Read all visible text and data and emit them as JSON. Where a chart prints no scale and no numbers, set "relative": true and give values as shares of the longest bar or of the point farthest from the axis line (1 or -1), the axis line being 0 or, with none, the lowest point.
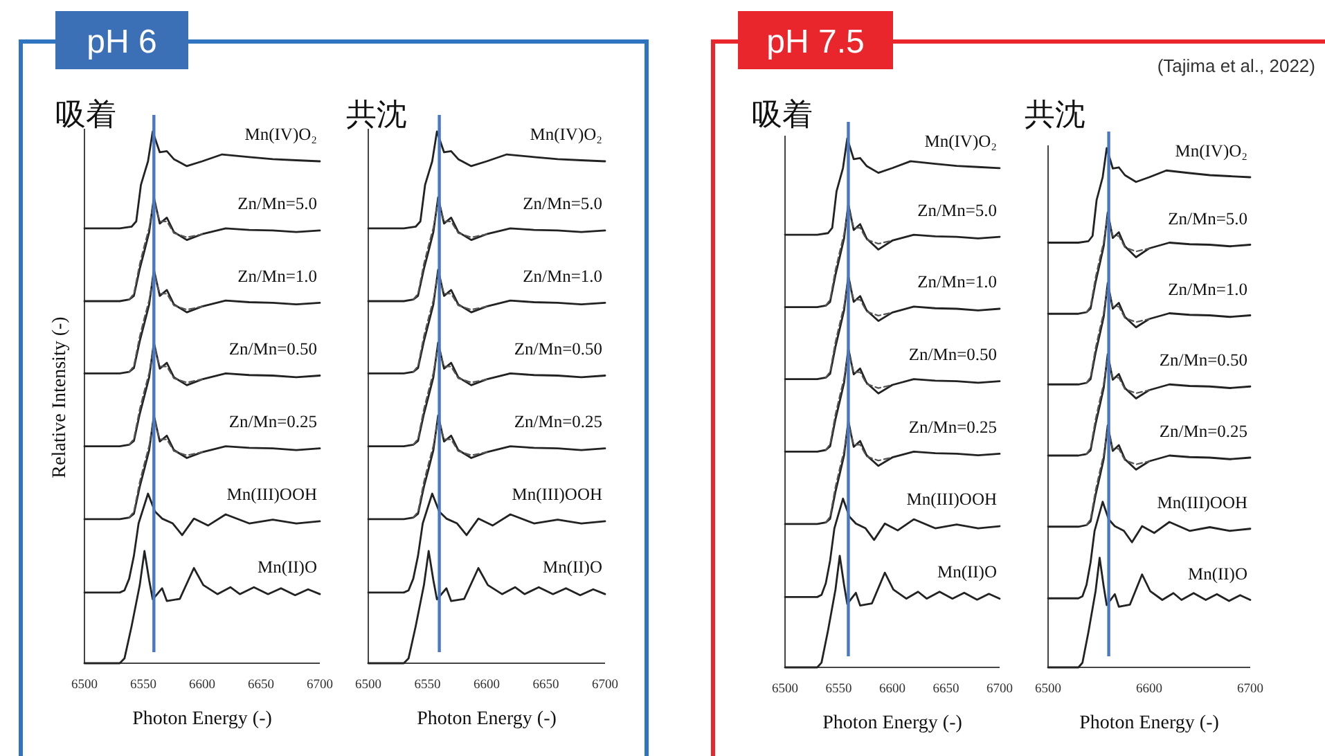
{
  "chart_data": [
    {
      "type": "line",
      "title": "吸着",
      "subtitle": "pH 6",
      "xlabel": "Photon Energy (-)",
      "ylabel": "Relative Intensity (-)",
      "relative": true,
      "xlim": [
        6500,
        6700
      ],
      "xticks": [
        6500,
        6550,
        6600,
        6650,
        6700
      ],
      "ref_lines": [
        {
          "axis": "x",
          "value": 6559,
          "color": "#4a78c2"
        }
      ],
      "series": [
        {
          "name": "Mn(IV)O₂",
          "color": "#222222",
          "x": [
            6500,
            6530,
            6540,
            6544,
            6548,
            6551,
            6554,
            6558,
            6564,
            6570,
            6576,
            6587,
            6600,
            6617,
            6640,
            6660,
            6680,
            6700
          ],
          "values": [
            0.818,
            0.818,
            0.821,
            0.831,
            0.9,
            0.922,
            0.944,
            1.0,
            0.961,
            0.963,
            0.948,
            0.935,
            0.944,
            0.957,
            0.952,
            0.948,
            0.946,
            0.944
          ]
        },
        {
          "name": "Zn/Mn=5.0",
          "color": "#222222",
          "x": [
            6500,
            6530,
            6538,
            6542,
            6547,
            6551,
            6555,
            6559,
            6564,
            6570,
            6576,
            6587,
            6600,
            6620,
            6640,
            6660,
            6680,
            6700
          ],
          "values": [
            0.681,
            0.681,
            0.684,
            0.691,
            0.742,
            0.776,
            0.811,
            0.876,
            0.827,
            0.838,
            0.811,
            0.796,
            0.807,
            0.818,
            0.815,
            0.814,
            0.811,
            0.814
          ]
        },
        {
          "color": "#555555",
          "line_style": "dashed",
          "x": [
            6538,
            6542,
            6547,
            6551,
            6555,
            6559,
            6564,
            6570,
            6576,
            6587,
            6600
          ],
          "values": [
            0.684,
            0.695,
            0.751,
            0.786,
            0.819,
            0.871,
            0.831,
            0.831,
            0.809,
            0.801,
            0.807
          ]
        },
        {
          "name": "Zn/Mn=1.0",
          "color": "#222222",
          "x": [
            6500,
            6530,
            6538,
            6542,
            6547,
            6551,
            6555,
            6559,
            6564,
            6570,
            6576,
            6587,
            6600,
            6620,
            6640,
            6660,
            6680,
            6700
          ],
          "values": [
            0.545,
            0.545,
            0.548,
            0.555,
            0.606,
            0.64,
            0.675,
            0.74,
            0.691,
            0.702,
            0.675,
            0.66,
            0.671,
            0.682,
            0.679,
            0.678,
            0.675,
            0.678
          ]
        },
        {
          "color": "#555555",
          "line_style": "dashed",
          "x": [
            6538,
            6542,
            6547,
            6551,
            6555,
            6559,
            6564,
            6570,
            6576,
            6587,
            6600
          ],
          "values": [
            0.548,
            0.559,
            0.615,
            0.65,
            0.683,
            0.735,
            0.695,
            0.695,
            0.673,
            0.665,
            0.671
          ]
        },
        {
          "name": "Zn/Mn=0.50",
          "color": "#222222",
          "x": [
            6500,
            6530,
            6538,
            6542,
            6547,
            6551,
            6555,
            6559,
            6564,
            6570,
            6576,
            6587,
            6600,
            6620,
            6640,
            6660,
            6680,
            6700
          ],
          "values": [
            0.408,
            0.408,
            0.411,
            0.418,
            0.469,
            0.503,
            0.538,
            0.603,
            0.554,
            0.565,
            0.538,
            0.523,
            0.534,
            0.545,
            0.542,
            0.541,
            0.538,
            0.541
          ]
        },
        {
          "color": "#555555",
          "line_style": "dashed",
          "x": [
            6538,
            6542,
            6547,
            6551,
            6555,
            6559,
            6564,
            6570,
            6576,
            6587,
            6600
          ],
          "values": [
            0.411,
            0.422,
            0.478,
            0.513,
            0.546,
            0.598,
            0.558,
            0.558,
            0.536,
            0.528,
            0.534
          ]
        },
        {
          "name": "Zn/Mn=0.25",
          "color": "#222222",
          "x": [
            6500,
            6530,
            6538,
            6542,
            6547,
            6551,
            6555,
            6559,
            6564,
            6570,
            6576,
            6587,
            6600,
            6620,
            6640,
            6660,
            6680,
            6700
          ],
          "values": [
            0.271,
            0.271,
            0.274,
            0.281,
            0.332,
            0.366,
            0.401,
            0.466,
            0.417,
            0.428,
            0.401,
            0.386,
            0.397,
            0.408,
            0.405,
            0.404,
            0.401,
            0.404
          ]
        },
        {
          "color": "#555555",
          "line_style": "dashed",
          "x": [
            6538,
            6542,
            6547,
            6551,
            6555,
            6559,
            6564,
            6570,
            6576,
            6587,
            6600
          ],
          "values": [
            0.274,
            0.285,
            0.341,
            0.376,
            0.409,
            0.461,
            0.421,
            0.421,
            0.399,
            0.391,
            0.397
          ]
        },
        {
          "name": "Mn(III)OOH",
          "color": "#222222",
          "x": [
            6500,
            6530,
            6534,
            6538,
            6542,
            6546,
            6554,
            6560,
            6566,
            6575,
            6583,
            6593,
            6605,
            6620,
            6640,
            6660,
            6680,
            6700
          ],
          "values": [
            0.133,
            0.133,
            0.137,
            0.159,
            0.202,
            0.263,
            0.319,
            0.285,
            0.272,
            0.263,
            0.241,
            0.272,
            0.259,
            0.28,
            0.263,
            0.27,
            0.263,
            0.267
          ]
        },
        {
          "name": "Mn(II)O",
          "color": "#222222",
          "x": [
            6500,
            6530,
            6534,
            6540,
            6547,
            6551,
            6555,
            6558,
            6566,
            6570,
            6581,
            6593,
            6601,
            6613,
            6624,
            6632,
            6644,
            6656,
            6667,
            6679,
            6690,
            6700
          ],
          "values": [
            0,
            0,
            0.009,
            0.069,
            0.147,
            0.211,
            0.156,
            0.12,
            0.141,
            0.117,
            0.121,
            0.179,
            0.147,
            0.13,
            0.143,
            0.13,
            0.143,
            0.13,
            0.141,
            0.128,
            0.139,
            0.13
          ]
        }
      ]
    },
    {
      "type": "line",
      "title": "共沈",
      "xlabel": "Photon Energy (-)",
      "relative": true,
      "xlim": [
        6500,
        6700
      ],
      "xticks": [
        6500,
        6550,
        6600,
        6650,
        6700
      ],
      "ref_lines": [
        {
          "axis": "x",
          "value": 6560,
          "color": "#4a78c2"
        }
      ],
      "series": [
        {
          "name": "Mn(IV)O₂",
          "color": "#222222",
          "x": [
            6500,
            6530,
            6540,
            6544,
            6548,
            6551,
            6554,
            6558,
            6564,
            6570,
            6576,
            6587,
            6600,
            6617,
            6640,
            6660,
            6680,
            6700
          ],
          "values": [
            0.818,
            0.818,
            0.821,
            0.831,
            0.9,
            0.922,
            0.944,
            1.0,
            0.961,
            0.963,
            0.948,
            0.935,
            0.944,
            0.957,
            0.952,
            0.948,
            0.946,
            0.944
          ]
        },
        {
          "name": "Zn/Mn=5.0",
          "color": "#222222",
          "x": [
            6500,
            6530,
            6538,
            6542,
            6547,
            6551,
            6555,
            6559,
            6564,
            6570,
            6576,
            6587,
            6600,
            6620,
            6640,
            6660,
            6680,
            6700
          ],
          "values": [
            0.681,
            0.681,
            0.684,
            0.691,
            0.742,
            0.776,
            0.811,
            0.876,
            0.827,
            0.838,
            0.811,
            0.796,
            0.807,
            0.818,
            0.815,
            0.814,
            0.811,
            0.814
          ]
        },
        {
          "color": "#555555",
          "line_style": "dashed",
          "x": [
            6538,
            6542,
            6547,
            6551,
            6555,
            6559,
            6564,
            6570,
            6576,
            6587,
            6600
          ],
          "values": [
            0.684,
            0.695,
            0.751,
            0.786,
            0.819,
            0.871,
            0.831,
            0.831,
            0.809,
            0.801,
            0.807
          ]
        },
        {
          "name": "Zn/Mn=1.0",
          "color": "#222222",
          "x": [
            6500,
            6530,
            6538,
            6542,
            6547,
            6551,
            6555,
            6559,
            6564,
            6570,
            6576,
            6587,
            6600,
            6620,
            6640,
            6660,
            6680,
            6700
          ],
          "values": [
            0.545,
            0.545,
            0.548,
            0.555,
            0.606,
            0.64,
            0.675,
            0.74,
            0.691,
            0.702,
            0.675,
            0.66,
            0.671,
            0.682,
            0.679,
            0.678,
            0.675,
            0.678
          ]
        },
        {
          "color": "#555555",
          "line_style": "dashed",
          "x": [
            6538,
            6542,
            6547,
            6551,
            6555,
            6559,
            6564,
            6570,
            6576,
            6587,
            6600
          ],
          "values": [
            0.548,
            0.559,
            0.615,
            0.65,
            0.683,
            0.735,
            0.695,
            0.695,
            0.673,
            0.665,
            0.671
          ]
        },
        {
          "name": "Zn/Mn=0.50",
          "color": "#222222",
          "x": [
            6500,
            6530,
            6538,
            6542,
            6547,
            6551,
            6555,
            6559,
            6564,
            6570,
            6576,
            6587,
            6600,
            6620,
            6640,
            6660,
            6680,
            6700
          ],
          "values": [
            0.408,
            0.408,
            0.411,
            0.418,
            0.469,
            0.503,
            0.538,
            0.603,
            0.554,
            0.565,
            0.538,
            0.523,
            0.534,
            0.545,
            0.542,
            0.541,
            0.538,
            0.541
          ]
        },
        {
          "color": "#555555",
          "line_style": "dashed",
          "x": [
            6538,
            6542,
            6547,
            6551,
            6555,
            6559,
            6564,
            6570,
            6576,
            6587,
            6600
          ],
          "values": [
            0.411,
            0.422,
            0.478,
            0.513,
            0.546,
            0.598,
            0.558,
            0.558,
            0.536,
            0.528,
            0.534
          ]
        },
        {
          "name": "Zn/Mn=0.25",
          "color": "#222222",
          "x": [
            6500,
            6530,
            6538,
            6542,
            6547,
            6551,
            6555,
            6559,
            6564,
            6570,
            6576,
            6587,
            6600,
            6620,
            6640,
            6660,
            6680,
            6700
          ],
          "values": [
            0.271,
            0.271,
            0.274,
            0.281,
            0.332,
            0.366,
            0.401,
            0.466,
            0.417,
            0.428,
            0.401,
            0.386,
            0.397,
            0.408,
            0.405,
            0.404,
            0.401,
            0.404
          ]
        },
        {
          "color": "#555555",
          "line_style": "dashed",
          "x": [
            6538,
            6542,
            6547,
            6551,
            6555,
            6559,
            6564,
            6570,
            6576,
            6587,
            6600
          ],
          "values": [
            0.274,
            0.285,
            0.341,
            0.376,
            0.409,
            0.461,
            0.421,
            0.421,
            0.399,
            0.391,
            0.397
          ]
        },
        {
          "name": "Mn(III)OOH",
          "color": "#222222",
          "x": [
            6500,
            6530,
            6534,
            6538,
            6542,
            6546,
            6554,
            6560,
            6566,
            6575,
            6583,
            6593,
            6605,
            6620,
            6640,
            6660,
            6680,
            6700
          ],
          "values": [
            0.133,
            0.133,
            0.137,
            0.159,
            0.202,
            0.263,
            0.319,
            0.285,
            0.272,
            0.263,
            0.241,
            0.272,
            0.259,
            0.28,
            0.263,
            0.27,
            0.263,
            0.267
          ]
        },
        {
          "name": "Mn(II)O",
          "color": "#222222",
          "x": [
            6500,
            6530,
            6534,
            6540,
            6547,
            6551,
            6555,
            6558,
            6566,
            6570,
            6581,
            6593,
            6601,
            6613,
            6624,
            6632,
            6644,
            6656,
            6667,
            6679,
            6690,
            6700
          ],
          "values": [
            0,
            0,
            0.009,
            0.069,
            0.147,
            0.211,
            0.156,
            0.12,
            0.141,
            0.117,
            0.121,
            0.179,
            0.147,
            0.13,
            0.143,
            0.13,
            0.143,
            0.13,
            0.141,
            0.128,
            0.139,
            0.13
          ]
        }
      ]
    },
    {
      "type": "line",
      "title": "吸着",
      "subtitle": "pH 7.5",
      "xlabel": "Photon Energy (-)",
      "relative": true,
      "xlim": [
        6500,
        6700
      ],
      "xticks": [
        6500,
        6550,
        6600,
        6650,
        6700
      ],
      "ref_lines": [
        {
          "axis": "x",
          "value": 6559,
          "color": "#4a78c2"
        }
      ],
      "series": [
        {
          "name": "Mn(IV)O₂",
          "color": "#222222",
          "x": [
            6500,
            6530,
            6540,
            6544,
            6548,
            6551,
            6554,
            6558,
            6564,
            6570,
            6576,
            6587,
            6600,
            6617,
            6640,
            6660,
            6680,
            6700
          ],
          "values": [
            0.818,
            0.818,
            0.821,
            0.831,
            0.9,
            0.922,
            0.944,
            1.0,
            0.961,
            0.963,
            0.948,
            0.935,
            0.944,
            0.957,
            0.952,
            0.948,
            0.946,
            0.944
          ]
        },
        {
          "name": "Zn/Mn=5.0",
          "color": "#222222",
          "x": [
            6500,
            6530,
            6538,
            6542,
            6547,
            6551,
            6555,
            6559,
            6564,
            6570,
            6576,
            6587,
            6600,
            6620,
            6640,
            6660,
            6680,
            6700
          ],
          "values": [
            0.681,
            0.681,
            0.684,
            0.691,
            0.742,
            0.776,
            0.811,
            0.876,
            0.827,
            0.838,
            0.811,
            0.79,
            0.807,
            0.818,
            0.815,
            0.814,
            0.811,
            0.814
          ]
        },
        {
          "color": "#555555",
          "line_style": "dashed",
          "x": [
            6538,
            6542,
            6547,
            6551,
            6555,
            6559,
            6564,
            6570,
            6576,
            6587,
            6600
          ],
          "values": [
            0.684,
            0.695,
            0.751,
            0.786,
            0.819,
            0.871,
            0.831,
            0.831,
            0.809,
            0.801,
            0.807
          ]
        },
        {
          "name": "Zn/Mn=1.0",
          "color": "#222222",
          "x": [
            6500,
            6530,
            6538,
            6542,
            6547,
            6551,
            6555,
            6559,
            6564,
            6570,
            6576,
            6587,
            6600,
            6620,
            6640,
            6660,
            6680,
            6700
          ],
          "values": [
            0.545,
            0.545,
            0.548,
            0.555,
            0.606,
            0.64,
            0.675,
            0.74,
            0.691,
            0.702,
            0.675,
            0.655,
            0.671,
            0.682,
            0.679,
            0.678,
            0.675,
            0.678
          ]
        },
        {
          "color": "#555555",
          "line_style": "dashed",
          "x": [
            6538,
            6542,
            6547,
            6551,
            6555,
            6559,
            6564,
            6570,
            6576,
            6587,
            6600
          ],
          "values": [
            0.548,
            0.559,
            0.615,
            0.65,
            0.683,
            0.735,
            0.695,
            0.695,
            0.673,
            0.665,
            0.671
          ]
        },
        {
          "name": "Zn/Mn=0.50",
          "color": "#222222",
          "x": [
            6500,
            6530,
            6538,
            6542,
            6547,
            6551,
            6555,
            6559,
            6564,
            6570,
            6576,
            6587,
            6600,
            6620,
            6640,
            6660,
            6680,
            6700
          ],
          "values": [
            0.408,
            0.408,
            0.411,
            0.418,
            0.469,
            0.503,
            0.538,
            0.603,
            0.554,
            0.565,
            0.538,
            0.518,
            0.534,
            0.545,
            0.542,
            0.541,
            0.538,
            0.541
          ]
        },
        {
          "color": "#555555",
          "line_style": "dashed",
          "x": [
            6538,
            6542,
            6547,
            6551,
            6555,
            6559,
            6564,
            6570,
            6576,
            6587,
            6600
          ],
          "values": [
            0.411,
            0.422,
            0.478,
            0.513,
            0.546,
            0.598,
            0.558,
            0.558,
            0.536,
            0.528,
            0.534
          ]
        },
        {
          "name": "Zn/Mn=0.25",
          "color": "#222222",
          "x": [
            6500,
            6530,
            6538,
            6542,
            6547,
            6551,
            6555,
            6559,
            6564,
            6570,
            6576,
            6587,
            6600,
            6620,
            6640,
            6660,
            6680,
            6700
          ],
          "values": [
            0.271,
            0.271,
            0.274,
            0.281,
            0.332,
            0.366,
            0.401,
            0.466,
            0.417,
            0.428,
            0.401,
            0.381,
            0.397,
            0.408,
            0.405,
            0.404,
            0.401,
            0.404
          ]
        },
        {
          "color": "#555555",
          "line_style": "dashed",
          "x": [
            6538,
            6542,
            6547,
            6551,
            6555,
            6559,
            6564,
            6570,
            6576,
            6587,
            6600
          ],
          "values": [
            0.274,
            0.285,
            0.341,
            0.376,
            0.409,
            0.461,
            0.421,
            0.421,
            0.399,
            0.391,
            0.397
          ]
        },
        {
          "name": "Mn(III)OOH",
          "color": "#222222",
          "x": [
            6500,
            6530,
            6534,
            6538,
            6542,
            6546,
            6554,
            6560,
            6566,
            6575,
            6583,
            6593,
            6605,
            6620,
            6640,
            6660,
            6680,
            6700
          ],
          "values": [
            0.133,
            0.133,
            0.137,
            0.159,
            0.202,
            0.263,
            0.319,
            0.285,
            0.272,
            0.263,
            0.241,
            0.272,
            0.259,
            0.28,
            0.263,
            0.27,
            0.263,
            0.267
          ]
        },
        {
          "name": "Mn(II)O",
          "color": "#222222",
          "x": [
            6500,
            6530,
            6534,
            6540,
            6547,
            6551,
            6555,
            6558,
            6566,
            6570,
            6581,
            6593,
            6601,
            6613,
            6624,
            6632,
            6644,
            6656,
            6667,
            6679,
            6690,
            6700
          ],
          "values": [
            0,
            0,
            0.009,
            0.069,
            0.147,
            0.211,
            0.156,
            0.12,
            0.141,
            0.117,
            0.121,
            0.179,
            0.147,
            0.13,
            0.143,
            0.13,
            0.143,
            0.13,
            0.141,
            0.128,
            0.139,
            0.13
          ]
        }
      ]
    },
    {
      "type": "line",
      "title": "共沈",
      "xlabel": "Photon Energy (-)",
      "relative": true,
      "xlim": [
        6500,
        6700
      ],
      "xticks": [
        6500,
        6600,
        6700
      ],
      "ref_lines": [
        {
          "axis": "x",
          "value": 6560,
          "color": "#4a78c2"
        }
      ],
      "annotations": [
        "(Tajima et al., 2022)"
      ],
      "series": [
        {
          "name": "Mn(IV)O₂",
          "color": "#222222",
          "x": [
            6500,
            6530,
            6540,
            6544,
            6548,
            6551,
            6554,
            6558,
            6564,
            6570,
            6576,
            6587,
            6600,
            6617,
            6640,
            6660,
            6680,
            6700
          ],
          "values": [
            0.818,
            0.818,
            0.821,
            0.831,
            0.9,
            0.922,
            0.944,
            1.0,
            0.961,
            0.963,
            0.948,
            0.935,
            0.944,
            0.957,
            0.952,
            0.948,
            0.946,
            0.944
          ]
        },
        {
          "name": "Zn/Mn=5.0",
          "color": "#222222",
          "x": [
            6500,
            6530,
            6538,
            6542,
            6547,
            6551,
            6555,
            6559,
            6564,
            6570,
            6576,
            6587,
            6600,
            6620,
            6640,
            6660,
            6680,
            6700
          ],
          "values": [
            0.681,
            0.681,
            0.684,
            0.691,
            0.742,
            0.776,
            0.811,
            0.876,
            0.827,
            0.838,
            0.811,
            0.79,
            0.807,
            0.818,
            0.815,
            0.814,
            0.811,
            0.814
          ]
        },
        {
          "color": "#555555",
          "line_style": "dashed",
          "x": [
            6538,
            6542,
            6547,
            6551,
            6555,
            6559,
            6564,
            6570,
            6576,
            6587,
            6600
          ],
          "values": [
            0.684,
            0.695,
            0.751,
            0.786,
            0.819,
            0.871,
            0.831,
            0.831,
            0.809,
            0.801,
            0.807
          ]
        },
        {
          "name": "Zn/Mn=1.0",
          "color": "#222222",
          "x": [
            6500,
            6530,
            6538,
            6542,
            6547,
            6551,
            6555,
            6559,
            6564,
            6570,
            6576,
            6587,
            6600,
            6620,
            6640,
            6660,
            6680,
            6700
          ],
          "values": [
            0.545,
            0.545,
            0.548,
            0.555,
            0.606,
            0.64,
            0.675,
            0.74,
            0.691,
            0.702,
            0.675,
            0.655,
            0.671,
            0.682,
            0.679,
            0.678,
            0.675,
            0.678
          ]
        },
        {
          "color": "#555555",
          "line_style": "dashed",
          "x": [
            6538,
            6542,
            6547,
            6551,
            6555,
            6559,
            6564,
            6570,
            6576,
            6587,
            6600
          ],
          "values": [
            0.548,
            0.559,
            0.615,
            0.65,
            0.683,
            0.735,
            0.695,
            0.695,
            0.673,
            0.665,
            0.671
          ]
        },
        {
          "name": "Zn/Mn=0.50",
          "color": "#222222",
          "x": [
            6500,
            6530,
            6538,
            6542,
            6547,
            6551,
            6555,
            6559,
            6564,
            6570,
            6576,
            6587,
            6600,
            6620,
            6640,
            6660,
            6680,
            6700
          ],
          "values": [
            0.408,
            0.408,
            0.411,
            0.418,
            0.469,
            0.503,
            0.538,
            0.603,
            0.554,
            0.565,
            0.538,
            0.518,
            0.534,
            0.545,
            0.542,
            0.541,
            0.538,
            0.541
          ]
        },
        {
          "color": "#555555",
          "line_style": "dashed",
          "x": [
            6538,
            6542,
            6547,
            6551,
            6555,
            6559,
            6564,
            6570,
            6576,
            6587,
            6600
          ],
          "values": [
            0.411,
            0.422,
            0.478,
            0.513,
            0.546,
            0.598,
            0.558,
            0.558,
            0.536,
            0.528,
            0.534
          ]
        },
        {
          "name": "Zn/Mn=0.25",
          "color": "#222222",
          "x": [
            6500,
            6530,
            6538,
            6542,
            6547,
            6551,
            6555,
            6559,
            6564,
            6570,
            6576,
            6587,
            6600,
            6620,
            6640,
            6660,
            6680,
            6700
          ],
          "values": [
            0.271,
            0.271,
            0.274,
            0.281,
            0.332,
            0.366,
            0.401,
            0.466,
            0.417,
            0.428,
            0.401,
            0.381,
            0.397,
            0.408,
            0.405,
            0.404,
            0.401,
            0.404
          ]
        },
        {
          "color": "#555555",
          "line_style": "dashed",
          "x": [
            6538,
            6542,
            6547,
            6551,
            6555,
            6559,
            6564,
            6570,
            6576,
            6587,
            6600
          ],
          "values": [
            0.274,
            0.285,
            0.341,
            0.376,
            0.409,
            0.461,
            0.421,
            0.421,
            0.399,
            0.391,
            0.397
          ]
        },
        {
          "name": "Mn(III)OOH",
          "color": "#222222",
          "x": [
            6500,
            6530,
            6534,
            6538,
            6542,
            6546,
            6554,
            6560,
            6566,
            6575,
            6583,
            6593,
            6605,
            6620,
            6640,
            6660,
            6680,
            6700
          ],
          "values": [
            0.133,
            0.133,
            0.137,
            0.159,
            0.202,
            0.263,
            0.319,
            0.285,
            0.272,
            0.263,
            0.241,
            0.272,
            0.259,
            0.28,
            0.263,
            0.27,
            0.263,
            0.267
          ]
        },
        {
          "name": "Mn(II)O",
          "color": "#222222",
          "x": [
            6500,
            6530,
            6534,
            6540,
            6547,
            6551,
            6555,
            6558,
            6566,
            6570,
            6581,
            6593,
            6601,
            6613,
            6624,
            6632,
            6644,
            6656,
            6667,
            6679,
            6690,
            6700
          ],
          "values": [
            0,
            0,
            0.009,
            0.069,
            0.147,
            0.211,
            0.156,
            0.12,
            0.141,
            0.117,
            0.121,
            0.179,
            0.147,
            0.13,
            0.143,
            0.13,
            0.143,
            0.13,
            0.141,
            0.128,
            0.139,
            0.13
          ]
        }
      ]
    }
  ]
}
